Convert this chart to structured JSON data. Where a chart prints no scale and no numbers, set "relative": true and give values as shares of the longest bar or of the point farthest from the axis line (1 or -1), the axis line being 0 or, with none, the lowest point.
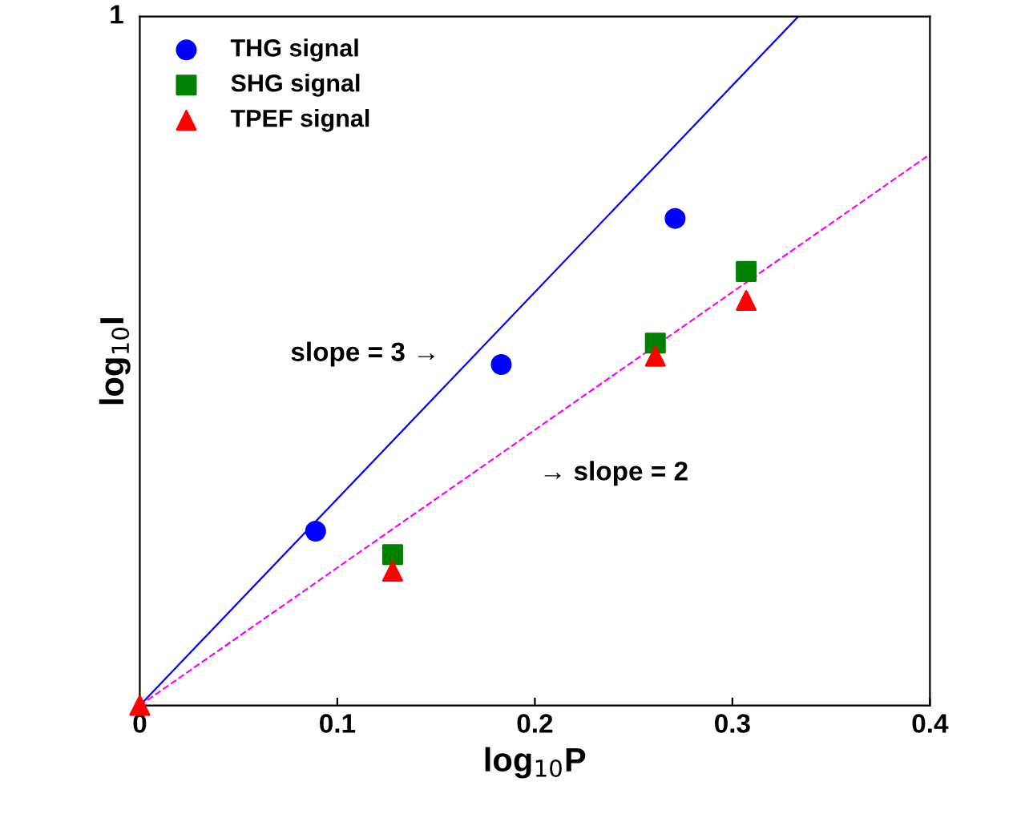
{
  "chart_data": {
    "type": "scatter",
    "xlabel": "log$_{10}$P",
    "ylabel": "log$_{10}$I",
    "xlim": [
      0,
      0.4
    ],
    "xticks": [
      0,
      0.1,
      0.2,
      0.3,
      0.4
    ],
    "relative": true,
    "legend": "top left",
    "grid": false,
    "series": [
      {
        "name": "THG signal",
        "marker": "circle",
        "color": "#0000ff",
        "x": [
          0.089,
          0.183,
          0.271
        ],
        "values": [
          0.253,
          0.495,
          0.707
        ]
      },
      {
        "name": "SHG signal",
        "marker": "square",
        "color": "#008000",
        "x": [
          0.128,
          0.261,
          0.307
        ],
        "values": [
          0.219,
          0.526,
          0.63
        ]
      },
      {
        "name": "TPEF signal",
        "marker": "triangle",
        "color": "#ff0000",
        "x": [
          0,
          0.128,
          0.261,
          0.307
        ],
        "values": [
          0,
          0.195,
          0.507,
          0.588
        ]
      },
      {
        "type": "line",
        "line_style": "solid",
        "color": "#0000ff",
        "x": [
          0,
          0.3333
        ],
        "values": [
          0,
          1
        ]
      },
      {
        "type": "line",
        "line_style": "dashed",
        "color": "#ff00ff",
        "x": [
          0,
          0.4
        ],
        "values": [
          0,
          0.8
        ]
      }
    ],
    "annotations": [
      "1",
      "slope = 3 →",
      "→ slope = 2"
    ]
  }
}
